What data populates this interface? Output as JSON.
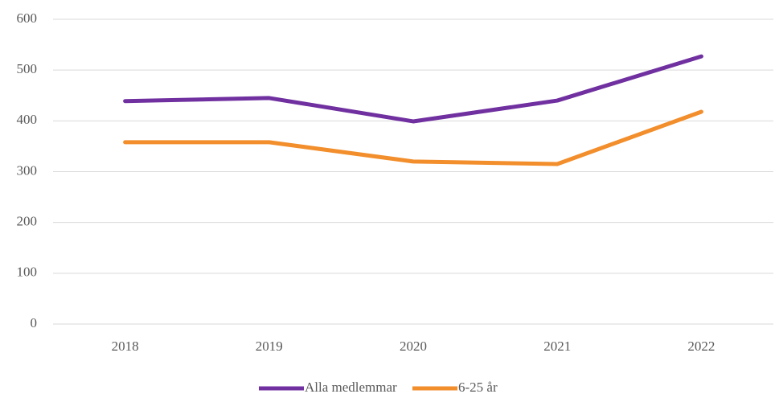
{
  "chart_data": {
    "type": "line",
    "categories": [
      "2018",
      "2019",
      "2020",
      "2021",
      "2022"
    ],
    "series": [
      {
        "name": "Alla medlemmar",
        "color": "#7030a0",
        "values": [
          439,
          445,
          399,
          440,
          527
        ]
      },
      {
        "name": "6-25 år",
        "color": "#f28e2b",
        "values": [
          358,
          358,
          320,
          315,
          418
        ]
      }
    ],
    "ylim": [
      0,
      600
    ],
    "yticks": [
      0,
      100,
      200,
      300,
      400,
      500,
      600
    ],
    "grid": true,
    "legend": "bottom"
  }
}
